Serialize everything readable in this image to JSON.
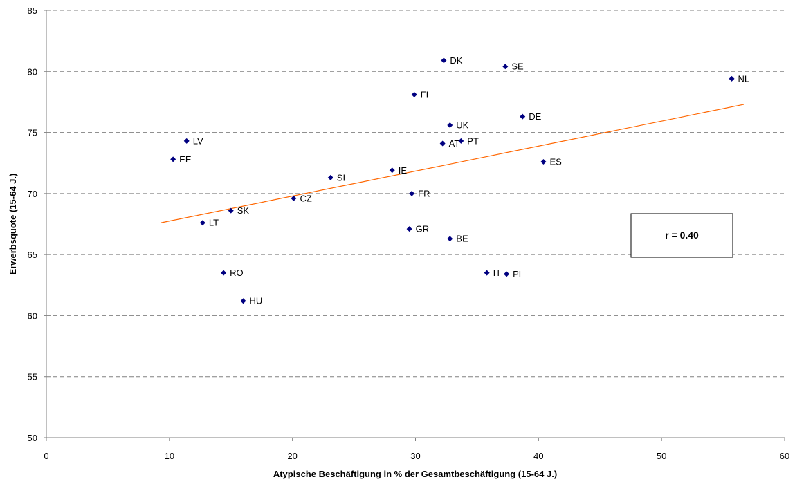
{
  "chart_data": {
    "type": "scatter",
    "title": "",
    "xlabel": "Atypische Beschäftigung in % der Gesamtbeschäftigung (15-64 J.)",
    "ylabel": "Erwerbsquote (15-64 J.)",
    "xlim": [
      0,
      60
    ],
    "ylim": [
      50,
      85
    ],
    "x_ticks": [
      "0",
      "10",
      "20",
      "30",
      "40",
      "50",
      "60"
    ],
    "y_ticks": [
      "50",
      "55",
      "60",
      "65",
      "70",
      "75",
      "80",
      "85"
    ],
    "grid": "horizontal dashed",
    "marker_color": "#000080",
    "trendline_color": "#FF6600",
    "points": [
      {
        "label": "DK",
        "x": 32.3,
        "y": 80.9
      },
      {
        "label": "SE",
        "x": 37.3,
        "y": 80.4
      },
      {
        "label": "NL",
        "x": 55.7,
        "y": 79.4
      },
      {
        "label": "FI",
        "x": 29.9,
        "y": 78.1
      },
      {
        "label": "DE",
        "x": 38.7,
        "y": 76.3
      },
      {
        "label": "UK",
        "x": 32.8,
        "y": 75.6
      },
      {
        "label": "LV",
        "x": 11.4,
        "y": 74.3
      },
      {
        "label": "AT",
        "x": 32.2,
        "y": 74.1
      },
      {
        "label": "PT",
        "x": 33.7,
        "y": 74.3
      },
      {
        "label": "EE",
        "x": 10.3,
        "y": 72.8
      },
      {
        "label": "ES",
        "x": 40.4,
        "y": 72.6
      },
      {
        "label": "IE",
        "x": 28.1,
        "y": 71.9
      },
      {
        "label": "SI",
        "x": 23.1,
        "y": 71.3
      },
      {
        "label": "FR",
        "x": 29.7,
        "y": 70.0
      },
      {
        "label": "CZ",
        "x": 20.1,
        "y": 69.6
      },
      {
        "label": "SK",
        "x": 15.0,
        "y": 68.6
      },
      {
        "label": "LT",
        "x": 12.7,
        "y": 67.6
      },
      {
        "label": "GR",
        "x": 29.5,
        "y": 67.1
      },
      {
        "label": "BE",
        "x": 32.8,
        "y": 66.3
      },
      {
        "label": "RO",
        "x": 14.4,
        "y": 63.5
      },
      {
        "label": "IT",
        "x": 35.8,
        "y": 63.5
      },
      {
        "label": "PL",
        "x": 37.4,
        "y": 63.4
      },
      {
        "label": "HU",
        "x": 16.0,
        "y": 61.2
      }
    ],
    "trendline": {
      "x": [
        9.3,
        56.7
      ],
      "y": [
        67.6,
        77.3
      ]
    },
    "annotation": "r = 0.40"
  }
}
